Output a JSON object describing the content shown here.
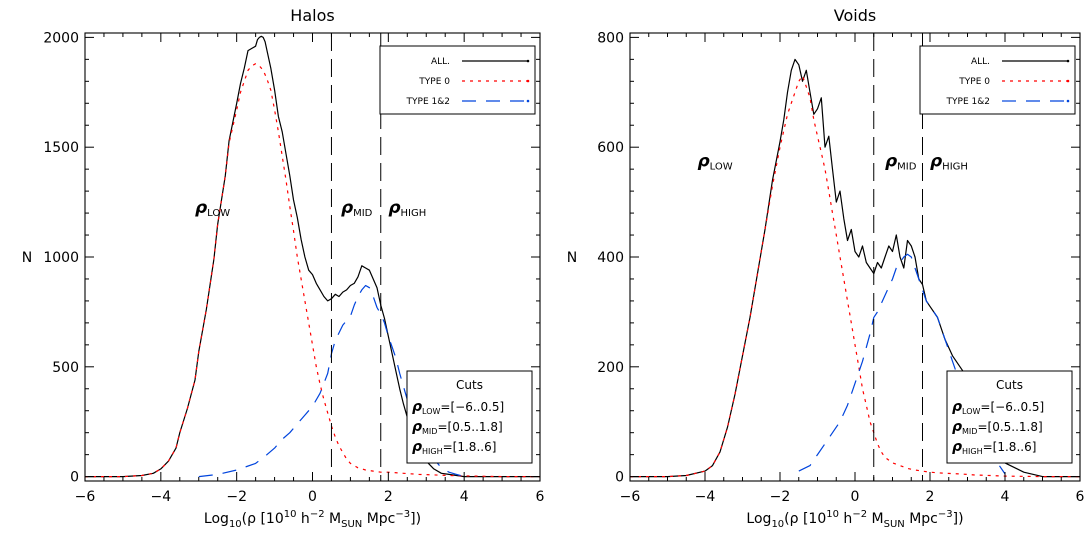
{
  "chart_data": [
    {
      "type": "line",
      "title": "Halos",
      "xlabel": {
        "pre": "Log",
        "sub10": "10",
        "mid": "(ρ [10",
        "sup10": "10",
        "mid2": " h",
        "supm2": "−2",
        "mid3": " M",
        "subsun": "SUN",
        "mid4": " Mpc",
        "supm3": "−3",
        "post": "])"
      },
      "ylabel": "N",
      "xlim": [
        -6,
        6
      ],
      "ylim": [
        -20,
        2020
      ],
      "xticks": [
        -6,
        -4,
        -2,
        0,
        2,
        4,
        6
      ],
      "yticks": [
        0,
        500,
        1000,
        1500,
        2000
      ],
      "cut_lines_x": [
        0.5,
        1.8
      ],
      "region_labels": [
        {
          "sym": "ρ",
          "sub": "LOW",
          "x": -3.1,
          "y": 1200
        },
        {
          "sym": "ρ",
          "sub": "MID",
          "x": 0.75,
          "y": 1200
        },
        {
          "sym": "ρ",
          "sub": "HIGH",
          "x": 2.0,
          "y": 1200
        }
      ],
      "legend": {
        "placement": "top-right",
        "entries": [
          {
            "label": "ALL.",
            "color": "#000000",
            "dash": ""
          },
          {
            "label": "TYPE 0",
            "color": "#ff0000",
            "dash": "3,5"
          },
          {
            "label": "TYPE 1&2",
            "color": "#0044dd",
            "dash": "14,10"
          }
        ]
      },
      "cuts_box": {
        "title": "Cuts",
        "rows": [
          {
            "sym": "ρ",
            "sub": "LOW",
            "val": "=[−6..0.5]"
          },
          {
            "sym": "ρ",
            "sub": "MID",
            "val": "=[0.5..1.8]"
          },
          {
            "sym": "ρ",
            "sub": "HIGH",
            "val": "=[1.8..6]"
          }
        ]
      },
      "series": [
        {
          "name": "ALL.",
          "color": "#000000",
          "dash": "",
          "x": [
            -6.0,
            -5.0,
            -4.5,
            -4.2,
            -4.0,
            -3.8,
            -3.6,
            -3.5,
            -3.3,
            -3.1,
            -3.0,
            -2.8,
            -2.6,
            -2.5,
            -2.3,
            -2.2,
            -2.0,
            -1.9,
            -1.8,
            -1.7,
            -1.6,
            -1.5,
            -1.45,
            -1.4,
            -1.35,
            -1.3,
            -1.25,
            -1.2,
            -1.1,
            -1.0,
            -0.9,
            -0.8,
            -0.7,
            -0.6,
            -0.5,
            -0.4,
            -0.3,
            -0.2,
            -0.1,
            0.0,
            0.1,
            0.2,
            0.3,
            0.4,
            0.5,
            0.6,
            0.7,
            0.8,
            0.9,
            1.0,
            1.1,
            1.2,
            1.3,
            1.4,
            1.5,
            1.6,
            1.7,
            1.8,
            1.9,
            2.0,
            2.1,
            2.2,
            2.3,
            2.4,
            2.5,
            2.6,
            2.7,
            2.8,
            2.9,
            3.0,
            3.2,
            3.4,
            3.6,
            3.8,
            4.0,
            4.5,
            5.0,
            6.0
          ],
          "y": [
            0,
            0,
            5,
            15,
            35,
            70,
            130,
            200,
            310,
            440,
            570,
            760,
            990,
            1150,
            1370,
            1530,
            1700,
            1790,
            1860,
            1940,
            1950,
            1960,
            1990,
            2000,
            2005,
            2000,
            1980,
            1940,
            1860,
            1760,
            1640,
            1570,
            1470,
            1370,
            1260,
            1180,
            1080,
            1000,
            940,
            920,
            880,
            850,
            820,
            800,
            810,
            830,
            820,
            840,
            850,
            870,
            880,
            910,
            960,
            950,
            940,
            900,
            860,
            780,
            720,
            640,
            560,
            480,
            400,
            330,
            270,
            210,
            170,
            130,
            100,
            70,
            35,
            15,
            10,
            5,
            0,
            0,
            0,
            0
          ]
        },
        {
          "name": "TYPE 0",
          "color": "#ff0000",
          "dash": "3,5",
          "x": [
            -6.0,
            -5.0,
            -4.5,
            -4.2,
            -4.0,
            -3.8,
            -3.6,
            -3.5,
            -3.3,
            -3.1,
            -3.0,
            -2.8,
            -2.6,
            -2.5,
            -2.3,
            -2.2,
            -2.0,
            -1.9,
            -1.8,
            -1.7,
            -1.6,
            -1.5,
            -1.4,
            -1.3,
            -1.2,
            -1.1,
            -1.0,
            -0.9,
            -0.8,
            -0.7,
            -0.6,
            -0.5,
            -0.4,
            -0.3,
            -0.2,
            -0.1,
            0.0,
            0.1,
            0.2,
            0.3,
            0.4,
            0.5,
            0.6,
            0.7,
            0.8,
            0.9,
            1.0,
            1.2,
            1.4,
            1.6,
            1.8,
            2.0,
            2.4,
            2.8,
            3.2,
            3.6,
            4.0,
            5.0,
            6.0
          ],
          "y": [
            0,
            0,
            5,
            15,
            35,
            70,
            130,
            200,
            310,
            440,
            570,
            760,
            990,
            1150,
            1370,
            1520,
            1670,
            1750,
            1800,
            1850,
            1870,
            1880,
            1870,
            1850,
            1810,
            1760,
            1670,
            1570,
            1460,
            1350,
            1230,
            1120,
            1000,
            900,
            800,
            700,
            600,
            500,
            420,
            350,
            290,
            230,
            180,
            140,
            110,
            80,
            60,
            40,
            30,
            25,
            20,
            20,
            15,
            10,
            8,
            5,
            3,
            0,
            0
          ]
        },
        {
          "name": "TYPE 1&2",
          "color": "#0044dd",
          "dash": "14,10",
          "x": [
            -3.0,
            -2.5,
            -2.0,
            -1.5,
            -1.2,
            -1.0,
            -0.8,
            -0.6,
            -0.4,
            -0.2,
            0.0,
            0.2,
            0.4,
            0.5,
            0.6,
            0.8,
            1.0,
            1.1,
            1.2,
            1.3,
            1.4,
            1.5,
            1.6,
            1.7,
            1.8,
            1.9,
            2.0,
            2.1,
            2.2,
            2.3,
            2.4,
            2.5,
            2.6,
            2.7,
            2.8,
            3.0,
            3.2,
            3.4,
            3.6,
            3.8,
            4.0
          ],
          "y": [
            0,
            10,
            30,
            60,
            100,
            130,
            170,
            200,
            240,
            280,
            320,
            380,
            470,
            560,
            620,
            690,
            730,
            780,
            820,
            850,
            870,
            860,
            820,
            770,
            740,
            700,
            640,
            590,
            540,
            470,
            410,
            350,
            290,
            240,
            200,
            130,
            80,
            40,
            20,
            10,
            0
          ]
        }
      ]
    },
    {
      "type": "line",
      "title": "Voids",
      "xlabel": {
        "pre": "Log",
        "sub10": "10",
        "mid": "(ρ [10",
        "sup10": "10",
        "mid2": " h",
        "supm2": "−2",
        "mid3": " M",
        "subsun": "SUN",
        "mid4": " Mpc",
        "supm3": "−3",
        "post": "])"
      },
      "ylabel": "N",
      "xlim": [
        -6,
        6
      ],
      "ylim": [
        -8,
        808
      ],
      "xticks": [
        -6,
        -4,
        -2,
        0,
        2,
        4,
        6
      ],
      "yticks": [
        0,
        200,
        400,
        600,
        800
      ],
      "cut_lines_x": [
        0.5,
        1.8
      ],
      "region_labels": [
        {
          "sym": "ρ",
          "sub": "LOW",
          "x": -4.2,
          "y": 565
        },
        {
          "sym": "ρ",
          "sub": "MID",
          "x": 0.8,
          "y": 565
        },
        {
          "sym": "ρ",
          "sub": "HIGH",
          "x": 2.0,
          "y": 565
        }
      ],
      "legend": {
        "placement": "top-right",
        "entries": [
          {
            "label": "ALL.",
            "color": "#000000",
            "dash": ""
          },
          {
            "label": "TYPE 0",
            "color": "#ff0000",
            "dash": "3,5"
          },
          {
            "label": "TYPE 1&2",
            "color": "#0044dd",
            "dash": "14,10"
          }
        ]
      },
      "cuts_box": {
        "title": "Cuts",
        "rows": [
          {
            "sym": "ρ",
            "sub": "LOW",
            "val": "=[−6..0.5]"
          },
          {
            "sym": "ρ",
            "sub": "MID",
            "val": "=[0.5..1.8]"
          },
          {
            "sym": "ρ",
            "sub": "HIGH",
            "val": "=[1.8..6]"
          }
        ]
      },
      "series": [
        {
          "name": "ALL.",
          "color": "#000000",
          "dash": "",
          "x": [
            -6.0,
            -5.0,
            -4.5,
            -4.0,
            -3.8,
            -3.6,
            -3.4,
            -3.2,
            -3.0,
            -2.8,
            -2.6,
            -2.4,
            -2.2,
            -2.0,
            -1.9,
            -1.8,
            -1.7,
            -1.6,
            -1.5,
            -1.4,
            -1.3,
            -1.2,
            -1.1,
            -1.0,
            -0.9,
            -0.8,
            -0.7,
            -0.6,
            -0.5,
            -0.4,
            -0.3,
            -0.2,
            -0.1,
            0.0,
            0.1,
            0.2,
            0.3,
            0.4,
            0.5,
            0.6,
            0.7,
            0.8,
            0.9,
            1.0,
            1.1,
            1.2,
            1.3,
            1.4,
            1.5,
            1.6,
            1.7,
            1.8,
            1.9,
            2.0,
            2.2,
            2.4,
            2.6,
            2.8,
            3.0,
            3.2,
            3.4,
            3.6,
            3.8,
            4.0,
            4.5,
            5.0,
            6.0
          ],
          "y": [
            0,
            0,
            2,
            10,
            20,
            45,
            90,
            150,
            220,
            290,
            370,
            450,
            540,
            610,
            650,
            700,
            740,
            760,
            750,
            720,
            740,
            700,
            660,
            670,
            690,
            600,
            620,
            560,
            500,
            520,
            470,
            430,
            450,
            410,
            400,
            420,
            390,
            380,
            370,
            390,
            380,
            400,
            420,
            410,
            440,
            400,
            380,
            430,
            420,
            400,
            360,
            350,
            320,
            310,
            290,
            250,
            220,
            200,
            180,
            140,
            110,
            80,
            50,
            25,
            8,
            0,
            0
          ]
        },
        {
          "name": "TYPE 0",
          "color": "#ff0000",
          "dash": "3,5",
          "x": [
            -6.0,
            -5.0,
            -4.5,
            -4.0,
            -3.8,
            -3.6,
            -3.4,
            -3.2,
            -3.0,
            -2.8,
            -2.6,
            -2.4,
            -2.2,
            -2.0,
            -1.8,
            -1.6,
            -1.5,
            -1.4,
            -1.3,
            -1.2,
            -1.1,
            -1.0,
            -0.9,
            -0.8,
            -0.7,
            -0.6,
            -0.5,
            -0.4,
            -0.3,
            -0.2,
            -0.1,
            0.0,
            0.1,
            0.2,
            0.3,
            0.4,
            0.5,
            0.6,
            0.7,
            0.8,
            1.0,
            1.2,
            1.4,
            1.6,
            1.8,
            2.0,
            2.4,
            2.8,
            3.2,
            3.6,
            4.0,
            5.0,
            6.0
          ],
          "y": [
            0,
            0,
            2,
            10,
            20,
            45,
            90,
            150,
            220,
            290,
            370,
            450,
            530,
            600,
            660,
            700,
            720,
            730,
            710,
            690,
            650,
            620,
            590,
            560,
            520,
            480,
            440,
            400,
            360,
            320,
            280,
            240,
            200,
            160,
            130,
            100,
            80,
            60,
            45,
            35,
            25,
            20,
            15,
            12,
            10,
            8,
            6,
            5,
            3,
            2,
            1,
            0,
            0
          ]
        },
        {
          "name": "TYPE 1&2",
          "color": "#0044dd",
          "dash": "14,10",
          "x": [
            -1.5,
            -1.2,
            -1.0,
            -0.8,
            -0.6,
            -0.4,
            -0.2,
            0.0,
            0.2,
            0.4,
            0.5,
            0.6,
            0.8,
            1.0,
            1.1,
            1.2,
            1.3,
            1.4,
            1.5,
            1.6,
            1.7,
            1.8,
            1.9,
            2.0,
            2.1,
            2.2,
            2.3,
            2.4,
            2.5,
            2.6,
            2.7,
            2.8,
            3.0,
            3.2,
            3.4,
            3.6,
            3.8,
            4.0
          ],
          "y": [
            10,
            20,
            40,
            60,
            80,
            100,
            130,
            170,
            210,
            260,
            290,
            300,
            330,
            360,
            380,
            390,
            400,
            405,
            400,
            380,
            360,
            340,
            320,
            310,
            300,
            290,
            270,
            250,
            230,
            210,
            190,
            170,
            140,
            110,
            80,
            50,
            25,
            5
          ]
        }
      ]
    }
  ]
}
